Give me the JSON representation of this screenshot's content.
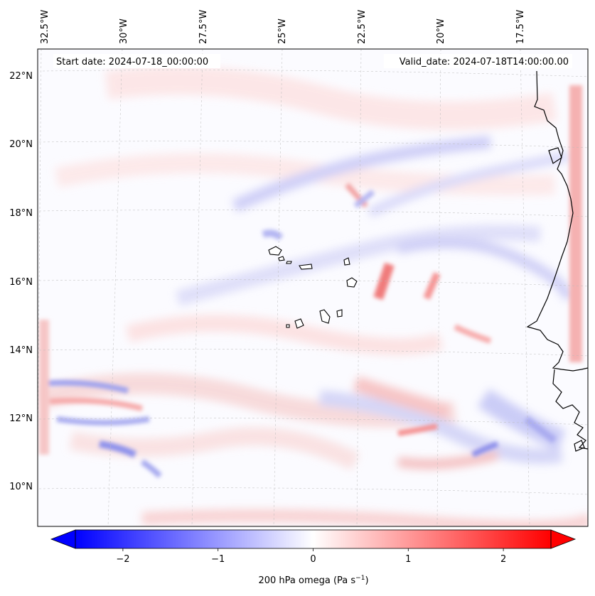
{
  "header": {
    "start_date": "Start date: 2024-07-18_00:00:00",
    "valid_date": "Valid_date: 2024-07-18T14:00:00.00"
  },
  "map": {
    "lon_labels": [
      "32.5°W",
      "30°W",
      "27.5°W",
      "25°W",
      "22.5°W",
      "20°W",
      "17.5°W"
    ],
    "lat_labels": [
      "22°N",
      "20°N",
      "18°N",
      "16°N",
      "14°N",
      "12°N",
      "10°N"
    ],
    "grid": true,
    "coastline_color": "#000000"
  },
  "colorbar": {
    "label": "200 hPa omega (Pa s",
    "label_exp": "−1",
    "label_close": ")",
    "ticks": [
      "−2",
      "−1",
      "0",
      "1",
      "2"
    ],
    "tick_values": [
      -2,
      -1,
      0,
      1,
      2
    ],
    "range": [
      -2.5,
      2.5
    ],
    "colormap": "bwr",
    "extend": "both",
    "colors": {
      "min": "#0000ff",
      "mid": "#ffffff",
      "max": "#ff0000"
    }
  }
}
